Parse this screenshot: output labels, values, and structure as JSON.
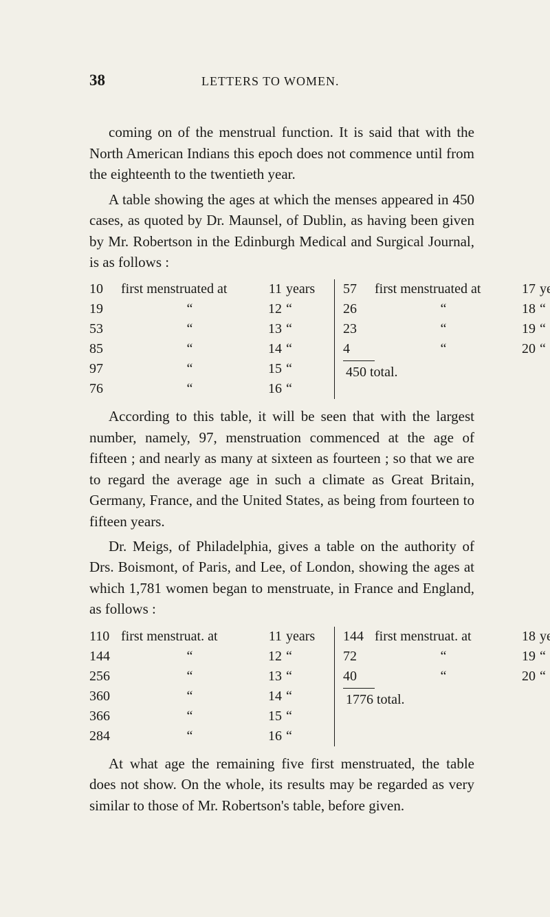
{
  "header": {
    "page_number": "38",
    "running_title": "LETTERS TO WOMEN."
  },
  "paragraphs": {
    "p1": "coming on of the menstrual function. It is said that with the North American Indians this epoch does not commence until from the eighteenth to the twentieth year.",
    "p2": "A table showing the ages at which the menses appeared in 450 cases, as quoted by Dr. Maunsel, of Dublin, as having been given by Mr. Robertson in the Edinburgh Medical and Surgical Journal, is as follows :",
    "p3": "According to this table, it will be seen that with the largest number, namely, 97, menstruation commenced at the age of fifteen ; and nearly as many at sixteen as fourteen ; so that we are to regard the average age in such a climate as Great Britain, Germany, France, and the United States, as being from fourteen to fifteen years.",
    "p4": "Dr. Meigs, of Philadelphia, gives a table on the authority of Drs. Boismont, of Paris, and Lee, of London, showing the ages at which 1,781 women began to menstruate, in France and England, as follows :",
    "p5": "At what age the remaining five first menstruated, the table does not show. On the whole, its results may be regarded as very similar to those of Mr. Robertson's table, before given."
  },
  "table1": {
    "left_first": {
      "count": "10",
      "phrase": "first menstruated at",
      "age": "11",
      "unit": "years"
    },
    "left_rows": [
      {
        "count": "19",
        "age": "12"
      },
      {
        "count": "53",
        "age": "13"
      },
      {
        "count": "85",
        "age": "14"
      },
      {
        "count": "97",
        "age": "15"
      },
      {
        "count": "76",
        "age": "16"
      }
    ],
    "right_first": {
      "count": "57",
      "phrase": "first menstruated at",
      "age": "17",
      "unit": "years"
    },
    "right_rows": [
      {
        "count": "26",
        "age": "18"
      },
      {
        "count": "23",
        "age": "19"
      },
      {
        "count": "4",
        "age": "20"
      }
    ],
    "right_total": "450 total."
  },
  "table2": {
    "left_first": {
      "count": "110",
      "phrase": "first menstruat. at",
      "age": "11",
      "unit": "years"
    },
    "left_rows": [
      {
        "count": "144",
        "age": "12"
      },
      {
        "count": "256",
        "age": "13"
      },
      {
        "count": "360",
        "age": "14"
      },
      {
        "count": "366",
        "age": "15"
      },
      {
        "count": "284",
        "age": "16"
      }
    ],
    "right_first": {
      "count": "144",
      "phrase": "first menstruat. at",
      "age": "18",
      "unit": "years"
    },
    "right_rows": [
      {
        "count": "72",
        "age": "19"
      },
      {
        "count": "40",
        "age": "20"
      }
    ],
    "right_total": "1776 total."
  },
  "ditto": "“"
}
